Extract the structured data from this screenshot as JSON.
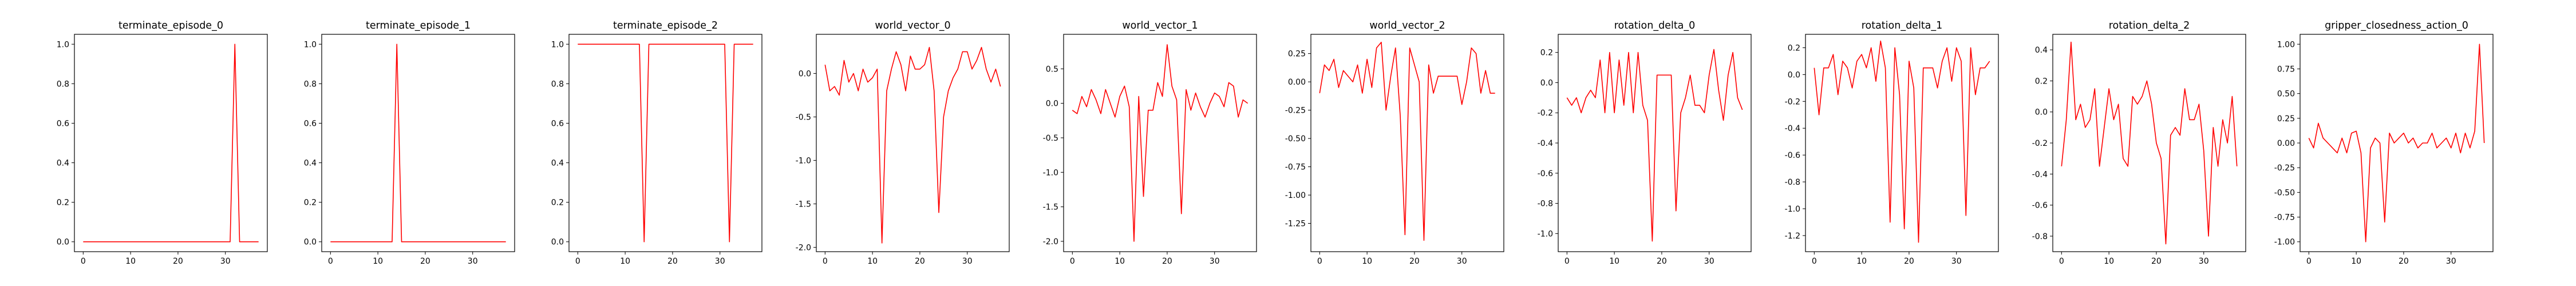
{
  "chart_data": [
    {
      "type": "line",
      "title": "terminate_episode_0",
      "color": "#ff0000",
      "x": [
        0,
        1,
        2,
        3,
        4,
        5,
        6,
        7,
        8,
        9,
        10,
        11,
        12,
        13,
        14,
        15,
        16,
        17,
        18,
        19,
        20,
        21,
        22,
        23,
        24,
        25,
        26,
        27,
        28,
        29,
        30,
        31,
        32,
        33,
        34,
        35,
        36,
        37
      ],
      "values": [
        0,
        0,
        0,
        0,
        0,
        0,
        0,
        0,
        0,
        0,
        0,
        0,
        0,
        0,
        0,
        0,
        0,
        0,
        0,
        0,
        0,
        0,
        0,
        0,
        0,
        0,
        0,
        0,
        0,
        0,
        0,
        0,
        1,
        0,
        0,
        0,
        0,
        0
      ],
      "xticks": [
        0,
        10,
        20,
        30
      ],
      "yticks": [
        0.0,
        0.2,
        0.4,
        0.6,
        0.8,
        1.0
      ],
      "ylim": [
        -0.05,
        1.05
      ]
    },
    {
      "type": "line",
      "title": "terminate_episode_1",
      "color": "#ff0000",
      "x": [
        0,
        1,
        2,
        3,
        4,
        5,
        6,
        7,
        8,
        9,
        10,
        11,
        12,
        13,
        14,
        15,
        16,
        17,
        18,
        19,
        20,
        21,
        22,
        23,
        24,
        25,
        26,
        27,
        28,
        29,
        30,
        31,
        32,
        33,
        34,
        35,
        36,
        37
      ],
      "values": [
        0,
        0,
        0,
        0,
        0,
        0,
        0,
        0,
        0,
        0,
        0,
        0,
        0,
        0,
        1,
        0,
        0,
        0,
        0,
        0,
        0,
        0,
        0,
        0,
        0,
        0,
        0,
        0,
        0,
        0,
        0,
        0,
        0,
        0,
        0,
        0,
        0,
        0
      ],
      "xticks": [
        0,
        10,
        20,
        30
      ],
      "yticks": [
        0.0,
        0.2,
        0.4,
        0.6,
        0.8,
        1.0
      ],
      "ylim": [
        -0.05,
        1.05
      ]
    },
    {
      "type": "line",
      "title": "terminate_episode_2",
      "color": "#ff0000",
      "x": [
        0,
        1,
        2,
        3,
        4,
        5,
        6,
        7,
        8,
        9,
        10,
        11,
        12,
        13,
        14,
        15,
        16,
        17,
        18,
        19,
        20,
        21,
        22,
        23,
        24,
        25,
        26,
        27,
        28,
        29,
        30,
        31,
        32,
        33,
        34,
        35,
        36,
        37
      ],
      "values": [
        1,
        1,
        1,
        1,
        1,
        1,
        1,
        1,
        1,
        1,
        1,
        1,
        1,
        1,
        0,
        1,
        1,
        1,
        1,
        1,
        1,
        1,
        1,
        1,
        1,
        1,
        1,
        1,
        1,
        1,
        1,
        1,
        0,
        1,
        1,
        1,
        1,
        1
      ],
      "xticks": [
        0,
        10,
        20,
        30
      ],
      "yticks": [
        0.0,
        0.2,
        0.4,
        0.6,
        0.8,
        1.0
      ],
      "ylim": [
        -0.05,
        1.05
      ]
    },
    {
      "type": "line",
      "title": "world_vector_0",
      "color": "#ff0000",
      "x": [
        0,
        1,
        2,
        3,
        4,
        5,
        6,
        7,
        8,
        9,
        10,
        11,
        12,
        13,
        14,
        15,
        16,
        17,
        18,
        19,
        20,
        21,
        22,
        23,
        24,
        25,
        26,
        27,
        28,
        29,
        30,
        31,
        32,
        33,
        34,
        35,
        36,
        37
      ],
      "values": [
        0.1,
        -0.2,
        -0.15,
        -0.25,
        0.15,
        -0.1,
        0.0,
        -0.2,
        0.05,
        -0.1,
        -0.05,
        0.05,
        -1.95,
        -0.2,
        0.05,
        0.25,
        0.1,
        -0.2,
        0.2,
        0.05,
        0.05,
        0.1,
        0.3,
        -0.2,
        -1.6,
        -0.5,
        -0.2,
        -0.05,
        0.05,
        0.25,
        0.25,
        0.05,
        0.15,
        0.3,
        0.05,
        -0.1,
        0.05,
        -0.15
      ],
      "xticks": [
        0,
        10,
        20,
        30
      ],
      "yticks": [
        -2.0,
        -1.5,
        -1.0,
        -0.5,
        0.0
      ],
      "ylim": [
        -2.05,
        0.45
      ]
    },
    {
      "type": "line",
      "title": "world_vector_1",
      "color": "#ff0000",
      "x": [
        0,
        1,
        2,
        3,
        4,
        5,
        6,
        7,
        8,
        9,
        10,
        11,
        12,
        13,
        14,
        15,
        16,
        17,
        18,
        19,
        20,
        21,
        22,
        23,
        24,
        25,
        26,
        27,
        28,
        29,
        30,
        31,
        32,
        33,
        34,
        35,
        36,
        37
      ],
      "values": [
        -0.1,
        -0.15,
        0.1,
        -0.05,
        0.2,
        0.05,
        -0.15,
        0.2,
        0.0,
        -0.2,
        0.1,
        0.25,
        -0.05,
        -2.0,
        0.1,
        -1.35,
        -0.1,
        -0.1,
        0.3,
        0.1,
        0.85,
        0.25,
        0.05,
        -1.6,
        0.2,
        -0.1,
        0.15,
        -0.05,
        -0.2,
        0.0,
        0.15,
        0.1,
        -0.05,
        0.3,
        0.25,
        -0.2,
        0.05,
        0.0
      ],
      "xticks": [
        0,
        10,
        20,
        30
      ],
      "yticks": [
        -2.0,
        -1.5,
        -1.0,
        -0.5,
        0.0,
        0.5
      ],
      "ylim": [
        -2.15,
        1.0
      ]
    },
    {
      "type": "line",
      "title": "world_vector_2",
      "color": "#ff0000",
      "x": [
        0,
        1,
        2,
        3,
        4,
        5,
        6,
        7,
        8,
        9,
        10,
        11,
        12,
        13,
        14,
        15,
        16,
        17,
        18,
        19,
        20,
        21,
        22,
        23,
        24,
        25,
        26,
        27,
        28,
        29,
        30,
        31,
        32,
        33,
        34,
        35,
        36,
        37
      ],
      "values": [
        -0.1,
        0.15,
        0.1,
        0.2,
        -0.05,
        0.1,
        0.05,
        0.0,
        0.15,
        -0.1,
        0.2,
        -0.05,
        0.3,
        0.35,
        -0.25,
        0.05,
        0.3,
        -0.3,
        -1.35,
        0.3,
        0.15,
        0.0,
        -1.4,
        0.15,
        -0.1,
        0.05,
        0.05,
        0.05,
        0.05,
        0.05,
        -0.2,
        0.0,
        0.3,
        0.25,
        -0.1,
        0.1,
        -0.1,
        -0.1
      ],
      "xticks": [
        0,
        10,
        20,
        30
      ],
      "yticks": [
        -1.25,
        -1.0,
        -0.75,
        -0.5,
        -0.25,
        0.0,
        0.25
      ],
      "ylim": [
        -1.5,
        0.42
      ]
    },
    {
      "type": "line",
      "title": "rotation_delta_0",
      "color": "#ff0000",
      "x": [
        0,
        1,
        2,
        3,
        4,
        5,
        6,
        7,
        8,
        9,
        10,
        11,
        12,
        13,
        14,
        15,
        16,
        17,
        18,
        19,
        20,
        21,
        22,
        23,
        24,
        25,
        26,
        27,
        28,
        29,
        30,
        31,
        32,
        33,
        34,
        35,
        36,
        37
      ],
      "values": [
        -0.1,
        -0.15,
        -0.1,
        -0.2,
        -0.1,
        -0.05,
        -0.1,
        0.15,
        -0.2,
        0.2,
        -0.2,
        0.15,
        -0.15,
        0.2,
        -0.2,
        0.2,
        -0.15,
        -0.25,
        -1.05,
        0.05,
        0.05,
        0.05,
        0.05,
        -0.85,
        -0.2,
        -0.1,
        0.05,
        -0.15,
        -0.15,
        -0.2,
        0.05,
        0.22,
        -0.05,
        -0.25,
        0.05,
        0.2,
        -0.1,
        -0.18
      ],
      "xticks": [
        0,
        10,
        20,
        30
      ],
      "yticks": [
        -1.0,
        -0.8,
        -0.6,
        -0.4,
        -0.2,
        0.0,
        0.2
      ],
      "ylim": [
        -1.12,
        0.32
      ]
    },
    {
      "type": "line",
      "title": "rotation_delta_1",
      "color": "#ff0000",
      "x": [
        0,
        1,
        2,
        3,
        4,
        5,
        6,
        7,
        8,
        9,
        10,
        11,
        12,
        13,
        14,
        15,
        16,
        17,
        18,
        19,
        20,
        21,
        22,
        23,
        24,
        25,
        26,
        27,
        28,
        29,
        30,
        31,
        32,
        33,
        34,
        35,
        36,
        37
      ],
      "values": [
        0.05,
        -0.3,
        0.05,
        0.05,
        0.15,
        -0.15,
        0.1,
        0.05,
        -0.1,
        0.1,
        0.15,
        0.05,
        0.2,
        -0.05,
        0.25,
        0.05,
        -1.1,
        0.2,
        -0.15,
        -1.15,
        0.1,
        -0.1,
        -1.25,
        0.05,
        0.05,
        0.05,
        -0.1,
        0.1,
        0.2,
        -0.05,
        0.2,
        0.1,
        -1.05,
        0.2,
        -0.15,
        0.05,
        0.05,
        0.1
      ],
      "xticks": [
        0,
        10,
        20,
        30
      ],
      "yticks": [
        -1.2,
        -1.0,
        -0.8,
        -0.6,
        -0.4,
        -0.2,
        0.0,
        0.2
      ],
      "ylim": [
        -1.32,
        0.3
      ]
    },
    {
      "type": "line",
      "title": "rotation_delta_2",
      "color": "#ff0000",
      "x": [
        0,
        1,
        2,
        3,
        4,
        5,
        6,
        7,
        8,
        9,
        10,
        11,
        12,
        13,
        14,
        15,
        16,
        17,
        18,
        19,
        20,
        21,
        22,
        23,
        24,
        25,
        26,
        27,
        28,
        29,
        30,
        31,
        32,
        33,
        34,
        35,
        36,
        37
      ],
      "values": [
        -0.35,
        -0.05,
        0.45,
        -0.05,
        0.05,
        -0.1,
        -0.05,
        0.15,
        -0.35,
        -0.1,
        0.15,
        -0.05,
        0.05,
        -0.3,
        -0.35,
        0.1,
        0.05,
        0.1,
        0.2,
        0.05,
        -0.2,
        -0.3,
        -0.85,
        -0.15,
        -0.1,
        -0.15,
        0.15,
        -0.05,
        -0.05,
        0.05,
        -0.25,
        -0.8,
        -0.1,
        -0.35,
        -0.05,
        -0.2,
        0.1,
        -0.35
      ],
      "xticks": [
        0,
        10,
        20,
        30
      ],
      "yticks": [
        -0.8,
        -0.6,
        -0.4,
        -0.2,
        0.0,
        0.2,
        0.4
      ],
      "ylim": [
        -0.9,
        0.5
      ]
    },
    {
      "type": "line",
      "title": "gripper_closedness_action_0",
      "color": "#ff0000",
      "x": [
        0,
        1,
        2,
        3,
        4,
        5,
        6,
        7,
        8,
        9,
        10,
        11,
        12,
        13,
        14,
        15,
        16,
        17,
        18,
        19,
        20,
        21,
        22,
        23,
        24,
        25,
        26,
        27,
        28,
        29,
        30,
        31,
        32,
        33,
        34,
        35,
        36,
        37
      ],
      "values": [
        0.05,
        -0.05,
        0.2,
        0.05,
        0.0,
        -0.05,
        -0.1,
        0.05,
        -0.1,
        0.1,
        0.12,
        -0.1,
        -1.0,
        -0.05,
        0.05,
        0.0,
        -0.8,
        0.1,
        0.0,
        0.05,
        0.1,
        0.0,
        0.05,
        -0.05,
        0.0,
        0.0,
        0.1,
        -0.05,
        0.0,
        0.05,
        -0.05,
        0.1,
        -0.1,
        0.1,
        -0.05,
        0.12,
        1.0,
        0.0
      ],
      "xticks": [
        0,
        10,
        20,
        30
      ],
      "yticks": [
        -1.0,
        -0.75,
        -0.5,
        -0.25,
        0.0,
        0.25,
        0.5,
        0.75,
        1.0
      ],
      "ylim": [
        -1.1,
        1.1
      ]
    }
  ]
}
